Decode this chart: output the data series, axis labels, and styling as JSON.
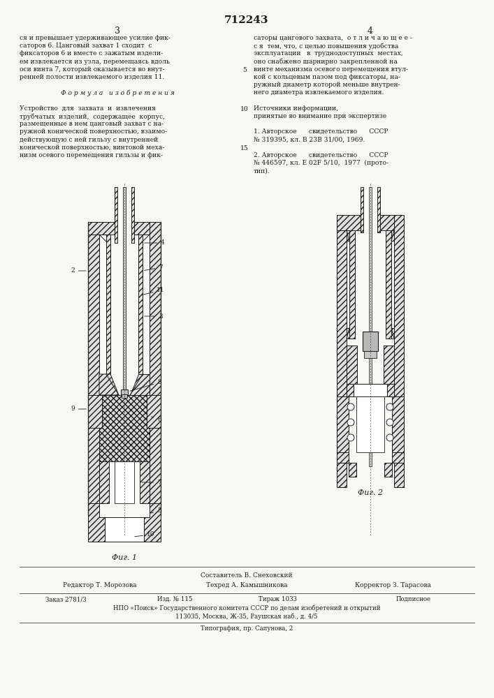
{
  "patent_number": "712243",
  "bg_color": "#f8f8f5",
  "text_color": "#1a1a1a",
  "left_col_text": [
    "ся и превышает удерживающее усилие фик-",
    "саторов 6. Цанговый захват 1 сходит  с",
    "фиксаторов 6 и вместе с зажатым издели-",
    "ем извлекается из узла, перемещаясь вдоль",
    "оси винта 7, который оказывается во внут-",
    "ренней полости извлекаемого изделия 11.",
    "",
    "Ф о р м у л а   и з о б р е т е н и я",
    "",
    "Устройство  для  захвата  и  извлечения",
    "трубчатых  изделий,  содержащее  корпус,",
    "размещенные в нем цанговый захват с на-",
    "ружной конической поверхностью, взаимо-",
    "действующую с ней гильзу с внутренней",
    "конической поверхностью, винтовой меха-",
    "низм осевого перемещения гильзы и фик-"
  ],
  "right_col_text": [
    "саторы цангового захвата,  о т л и ч а ю щ е е -",
    "с я  тем, что, с целью повышения удобства",
    "эксплуатации   в  труднодоступных  местах,",
    "оно снабжено шарнирно закрепленной на",
    "винте механизма осевого перемещения втул-",
    "кой с кольцевым пазом под фиксаторы, на-",
    "ружный диаметр которой меньше внутрен-",
    "него диаметра извлекаемого изделия.",
    "",
    "Источники информации,",
    "принятые во внимание при экспертизе",
    "",
    "1. Авторское      свидетельство      СССР",
    "№ 319395, кл. В 23В 31/00, 1969.",
    "",
    "2. Авторское      свидетельство      СССР",
    "№ 446597, кл. Е 02F 5/10,  1977  (прото-",
    "тип)."
  ],
  "fig1_label": "Фиг. 1",
  "fig2_label": "Фиг. 2",
  "footer_sestavitel": "Составитель В. Снеховский",
  "footer_editor": "Редактор Т. Морозова",
  "footer_techred": "Техред А. Камышникова",
  "footer_corrector": "Корректор З. Тарасова",
  "footer_order": "Заказ 2781/3",
  "footer_izd": "Изд. № 115",
  "footer_tirazh": "Тираж 1033",
  "footer_podp": "Подписное",
  "footer_npo": "НПО «Поиск» Государственного комитета СССР по делам изобретений и открытий",
  "footer_address": "113035, Москва, Ж-35, Раушская наб., д. 4/5",
  "footer_typography": "Типография, пр. Сапунова, 2"
}
